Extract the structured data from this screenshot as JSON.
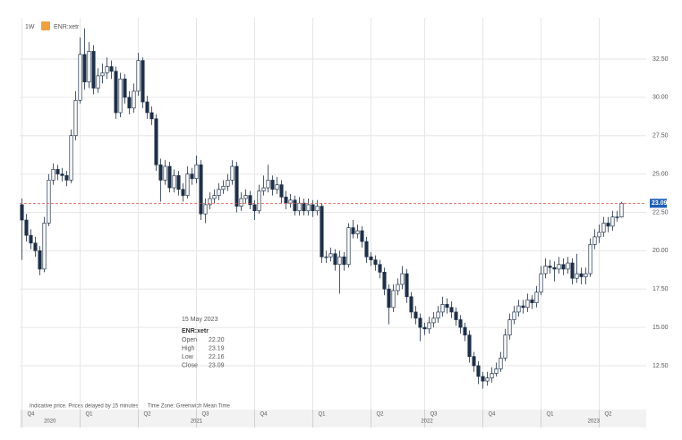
{
  "chart_data": {
    "type": "candlestick",
    "interval": "1W",
    "symbol": "ENR:xetr",
    "footer": [
      "Indicative price. Prices delayed by 15 minutes",
      "Time Zone: Greenwich Mean Time"
    ],
    "tooltip": {
      "date": "15 May 2023",
      "symbol": "ENR:xetr",
      "rows": [
        {
          "name": "Open",
          "value": "22.20"
        },
        {
          "name": "High",
          "value": "23.19"
        },
        {
          "name": "Low",
          "value": "22.16"
        },
        {
          "name": "Close",
          "value": "23.09"
        }
      ]
    },
    "up_color": "#ffffff",
    "down_color": "#1f3049",
    "outline_color": "#1f3049",
    "last_line_color": "#d9534f",
    "last_box_color": "#1f5fb4",
    "candles": {
      "open": [
        23.0,
        22.0,
        21.0,
        20.5,
        20.0,
        18.8,
        21.8,
        24.6,
        25.3,
        25.0,
        24.9,
        24.6,
        27.5,
        29.8,
        32.8,
        31.0,
        33.0,
        30.6,
        31.4,
        31.6,
        32.0,
        31.7,
        29.0,
        31.2,
        30.0,
        29.3,
        30.4,
        32.4,
        29.7,
        29.0,
        28.6,
        25.6,
        24.6,
        25.5,
        24.1,
        24.9,
        24.0,
        23.6,
        25.0,
        24.7,
        25.6,
        22.4,
        23.0,
        23.4,
        23.6,
        24.0,
        24.2,
        24.6,
        25.5,
        22.9,
        23.4,
        23.6,
        23.0,
        22.6,
        23.9,
        24.1,
        24.6,
        24.0,
        24.3,
        23.5,
        23.1,
        23.3,
        22.6,
        23.1,
        22.6,
        23.0,
        22.6,
        22.9,
        19.6,
        19.6,
        19.8,
        19.1,
        19.6,
        19.1,
        21.5,
        21.1,
        21.3,
        20.6,
        19.6,
        19.4,
        19.1,
        18.6,
        17.5,
        16.3,
        17.4,
        17.8,
        18.5,
        17.0,
        16.0,
        15.6,
        15.0,
        14.9,
        15.3,
        15.6,
        16.0,
        16.5,
        16.3,
        16.0,
        15.5,
        15.0,
        14.5,
        13.1,
        12.5,
        11.8,
        11.5,
        11.7,
        12.0,
        12.3,
        13.0,
        14.5,
        15.5,
        16.0,
        16.4,
        16.3,
        16.8,
        16.6,
        17.3,
        18.5,
        19.0,
        18.9,
        18.8,
        19.1,
        18.8,
        19.2,
        18.2,
        18.5,
        18.3,
        18.5,
        20.4,
        20.9,
        21.2,
        21.8,
        21.6,
        22.2,
        22.2
      ],
      "high": [
        23.4,
        22.4,
        21.4,
        20.9,
        20.3,
        22.2,
        25.0,
        25.7,
        25.6,
        25.4,
        25.2,
        27.9,
        30.4,
        33.9,
        34.5,
        33.6,
        33.4,
        31.9,
        32.2,
        32.6,
        32.4,
        32.0,
        31.6,
        31.5,
        30.4,
        30.9,
        32.9,
        32.6,
        30.1,
        29.4,
        28.9,
        26.0,
        25.9,
        25.8,
        25.3,
        25.2,
        24.4,
        25.5,
        25.4,
        26.2,
        25.9,
        23.4,
        23.8,
        24.0,
        24.4,
        24.6,
        25.0,
        25.9,
        25.8,
        23.8,
        24.0,
        23.9,
        23.3,
        24.3,
        24.9,
        25.6,
        24.9,
        24.8,
        24.6,
        23.9,
        23.7,
        23.6,
        23.5,
        23.4,
        23.4,
        23.3,
        23.3,
        23.1,
        20.0,
        20.2,
        20.1,
        20.0,
        19.9,
        21.8,
        22.0,
        21.7,
        21.6,
        20.9,
        19.9,
        19.7,
        19.4,
        18.9,
        17.8,
        17.8,
        18.2,
        19.0,
        18.8,
        17.3,
        16.4,
        15.9,
        15.3,
        15.7,
        16.0,
        16.4,
        17.0,
        16.9,
        16.7,
        16.3,
        15.8,
        15.3,
        14.8,
        13.4,
        12.8,
        12.1,
        12.1,
        12.4,
        12.7,
        13.4,
        14.9,
        15.9,
        16.4,
        16.8,
        16.8,
        17.2,
        17.1,
        17.7,
        19.0,
        19.5,
        19.4,
        19.3,
        19.6,
        19.5,
        19.6,
        19.5,
        19.8,
        18.9,
        18.9,
        20.8,
        21.4,
        21.7,
        22.2,
        22.2,
        22.6,
        22.6,
        23.19
      ],
      "low": [
        19.4,
        20.6,
        20.1,
        19.6,
        18.4,
        18.6,
        21.6,
        24.3,
        24.6,
        24.5,
        24.2,
        24.4,
        27.2,
        29.6,
        30.5,
        30.6,
        30.2,
        30.3,
        30.9,
        31.2,
        31.2,
        28.6,
        28.7,
        29.6,
        28.9,
        29.0,
        30.1,
        29.3,
        28.6,
        28.2,
        25.2,
        23.2,
        24.3,
        23.8,
        23.8,
        23.6,
        23.2,
        23.4,
        24.3,
        24.4,
        22.0,
        21.8,
        22.7,
        23.1,
        23.3,
        23.7,
        23.9,
        24.3,
        22.5,
        22.6,
        23.1,
        22.7,
        22.0,
        22.4,
        23.6,
        23.8,
        23.6,
        23.7,
        23.1,
        22.7,
        22.8,
        22.3,
        22.3,
        22.3,
        22.3,
        22.2,
        22.3,
        19.2,
        19.2,
        19.3,
        18.7,
        17.2,
        18.7,
        18.9,
        20.8,
        20.8,
        20.2,
        19.2,
        19.0,
        18.7,
        18.2,
        17.1,
        15.2,
        16.0,
        17.1,
        17.5,
        16.6,
        15.6,
        15.2,
        14.1,
        14.5,
        14.6,
        15.0,
        15.3,
        15.7,
        15.9,
        15.6,
        15.1,
        14.6,
        14.1,
        12.7,
        12.1,
        11.3,
        11.0,
        11.2,
        11.4,
        11.8,
        12.1,
        12.8,
        14.2,
        15.2,
        15.7,
        15.9,
        16.0,
        16.2,
        16.3,
        17.1,
        18.2,
        18.5,
        18.0,
        18.5,
        18.4,
        18.5,
        17.8,
        17.9,
        17.8,
        17.8,
        18.3,
        20.1,
        20.5,
        20.9,
        21.2,
        21.3,
        21.9,
        22.16
      ],
      "close": [
        22.0,
        21.0,
        20.5,
        20.0,
        18.8,
        21.8,
        24.6,
        25.3,
        25.0,
        24.9,
        24.6,
        27.5,
        29.8,
        32.8,
        31.0,
        33.0,
        30.6,
        31.4,
        31.6,
        32.0,
        31.7,
        29.0,
        31.2,
        30.0,
        29.3,
        30.4,
        32.4,
        29.7,
        29.0,
        28.6,
        25.6,
        24.6,
        25.5,
        24.1,
        24.9,
        24.0,
        23.6,
        25.0,
        24.7,
        25.6,
        22.4,
        23.0,
        23.4,
        23.6,
        24.0,
        24.2,
        24.6,
        25.5,
        22.9,
        23.4,
        23.6,
        23.0,
        22.6,
        23.9,
        24.1,
        24.6,
        24.0,
        24.3,
        23.5,
        23.1,
        23.3,
        22.6,
        23.1,
        22.6,
        23.0,
        22.6,
        22.9,
        19.6,
        19.6,
        19.8,
        19.1,
        19.6,
        19.1,
        21.5,
        21.1,
        21.3,
        20.6,
        19.6,
        19.4,
        19.1,
        18.6,
        17.5,
        16.3,
        17.4,
        17.8,
        18.5,
        17.0,
        16.0,
        15.6,
        15.0,
        14.9,
        15.3,
        15.6,
        16.0,
        16.5,
        16.3,
        16.0,
        15.5,
        15.0,
        14.5,
        13.1,
        12.5,
        11.8,
        11.5,
        11.7,
        12.0,
        12.3,
        13.0,
        14.5,
        15.5,
        16.0,
        16.4,
        16.3,
        16.8,
        16.6,
        17.3,
        18.5,
        19.0,
        18.9,
        18.8,
        19.1,
        18.8,
        19.2,
        18.2,
        18.5,
        18.3,
        18.5,
        20.4,
        20.9,
        21.2,
        21.8,
        21.6,
        22.2,
        22.2,
        23.09
      ]
    },
    "xlim": [
      -0.5,
      139.5
    ],
    "xticks": [
      {
        "value": 0,
        "label": "Q4"
      },
      {
        "value": 13,
        "label": "Q1"
      },
      {
        "value": 26,
        "label": "Q2"
      },
      {
        "value": 39,
        "label": "Q3"
      },
      {
        "value": 52,
        "label": "Q4"
      },
      {
        "value": 65,
        "label": "Q1"
      },
      {
        "value": 78,
        "label": "Q2"
      },
      {
        "value": 90,
        "label": "Q3"
      },
      {
        "value": 103,
        "label": "Q4"
      },
      {
        "value": 116,
        "label": "Q1"
      },
      {
        "value": 129,
        "label": "Q2"
      }
    ],
    "xyears": [
      {
        "value": -0.5,
        "label": "2020"
      },
      {
        "value": 13,
        "label": "2021"
      },
      {
        "value": 65,
        "label": "2022"
      },
      {
        "value": 116,
        "label": "2023"
      }
    ],
    "ylim": [
      9.64,
      35.18
    ],
    "yticks": [
      {
        "value": 12.5,
        "label": "12.50"
      },
      {
        "value": 15,
        "label": "15.00"
      },
      {
        "value": 17.5,
        "label": "17.50"
      },
      {
        "value": 20,
        "label": "20.00"
      },
      {
        "value": 22.5,
        "label": "22.50"
      },
      {
        "value": 25,
        "label": "25.00"
      },
      {
        "value": 27.5,
        "label": "27.50"
      },
      {
        "value": 30,
        "label": "30.00"
      },
      {
        "value": 32.5,
        "label": "32.50"
      }
    ],
    "grid": true
  }
}
